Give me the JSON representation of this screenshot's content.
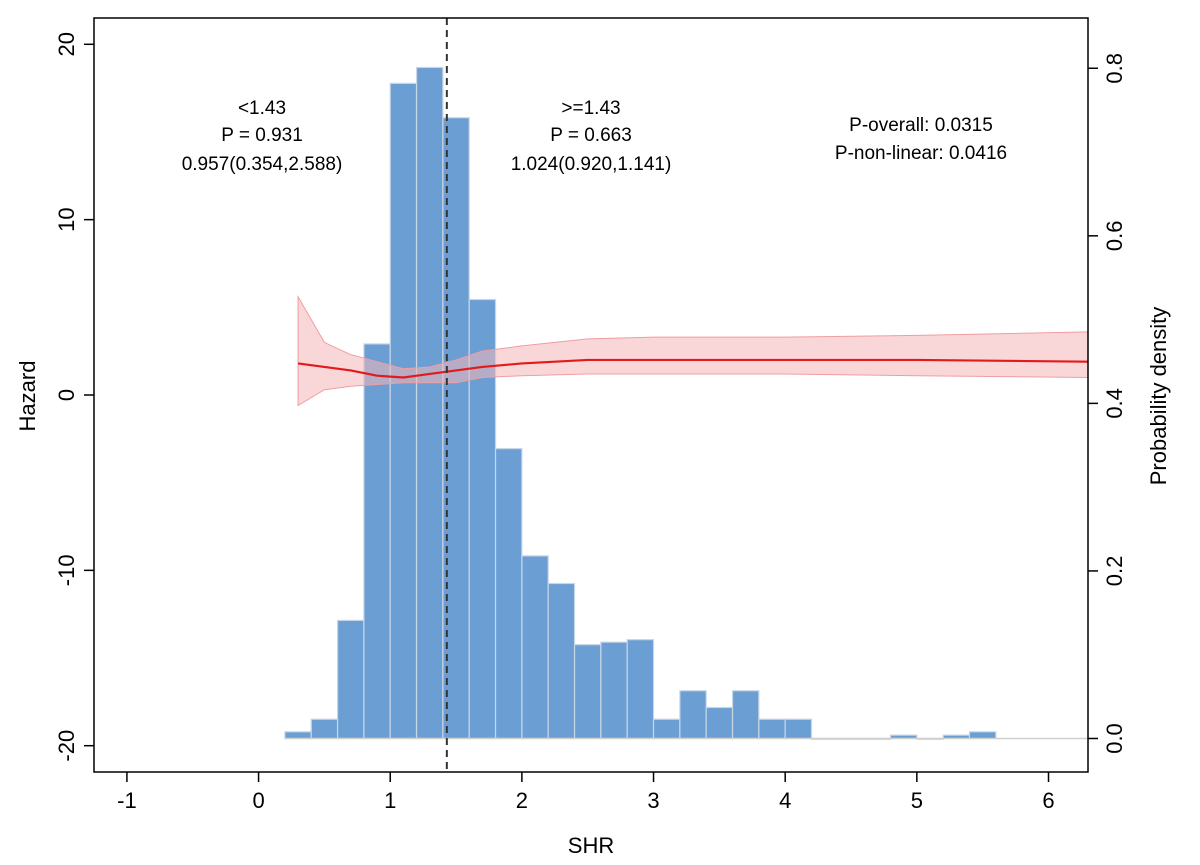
{
  "chart_data": {
    "type": "histogram+line",
    "xlabel": "SHR",
    "ylabel_left": "Hazard",
    "ylabel_right": "Probability density",
    "xlim": [
      -1.25,
      6.3
    ],
    "ylim_left": [
      -21.5,
      21.5
    ],
    "ylim_right": [
      -0.04,
      0.86
    ],
    "x_ticks": [
      -1,
      0,
      1,
      2,
      3,
      4,
      5,
      6
    ],
    "x_tick_labels": [
      "-1",
      "0",
      "1",
      "2",
      "3",
      "4",
      "5",
      "6"
    ],
    "y_left_ticks": [
      -20,
      -10,
      0,
      10,
      20
    ],
    "y_left_tick_labels": [
      "-20",
      "-10",
      "0",
      "10",
      "20"
    ],
    "y_right_ticks": [
      0.0,
      0.2,
      0.4,
      0.6,
      0.8
    ],
    "y_right_tick_labels": [
      "0.0",
      "0.2",
      "0.4",
      "0.6",
      "0.8"
    ],
    "cutoff": 1.43,
    "histogram": {
      "bin_width": 0.2,
      "bin_starts": [
        0.2,
        0.4,
        0.6,
        0.8,
        1.0,
        1.2,
        1.4,
        1.6,
        1.8,
        2.0,
        2.2,
        2.4,
        2.6,
        2.8,
        3.0,
        3.2,
        3.4,
        3.6,
        3.8,
        4.0,
        4.2,
        4.4,
        4.6,
        4.8,
        5.0,
        5.2,
        5.4
      ],
      "density": [
        0.008,
        0.023,
        0.141,
        0.471,
        0.782,
        0.801,
        0.741,
        0.524,
        0.346,
        0.218,
        0.185,
        0.112,
        0.115,
        0.118,
        0.023,
        0.057,
        0.037,
        0.057,
        0.023,
        0.023,
        0.0,
        0.0,
        0.0,
        0.004,
        0.0,
        0.004,
        0.008
      ],
      "fill": "#6b9fd4",
      "edge": "#c9d6e6"
    },
    "curve": {
      "color": "#e31a1c",
      "band_color": "#f4b6b8",
      "x": [
        0.3,
        0.5,
        0.7,
        0.9,
        1.1,
        1.3,
        1.5,
        1.7,
        2.0,
        2.5,
        3.0,
        4.0,
        5.0,
        6.3
      ],
      "y": [
        1.8,
        1.6,
        1.4,
        1.1,
        1.0,
        1.2,
        1.4,
        1.6,
        1.8,
        2.0,
        2.0,
        2.0,
        2.0,
        1.9
      ],
      "lower": [
        -0.6,
        0.3,
        0.5,
        0.6,
        0.7,
        0.7,
        0.7,
        1.0,
        1.1,
        1.2,
        1.2,
        1.2,
        1.1,
        1.0
      ],
      "upper": [
        5.6,
        3.0,
        2.3,
        1.9,
        1.5,
        1.6,
        2.0,
        2.5,
        2.8,
        3.2,
        3.3,
        3.3,
        3.4,
        3.6
      ]
    },
    "annotations": {
      "left": [
        "<1.43",
        "P = 0.931",
        "0.957(0.354,2.588)"
      ],
      "right": [
        ">=1.43",
        "P = 0.663",
        "1.024(0.920,1.141)"
      ],
      "overall": [
        "P-overall: 0.0315",
        "P-non-linear: 0.0416"
      ]
    }
  }
}
